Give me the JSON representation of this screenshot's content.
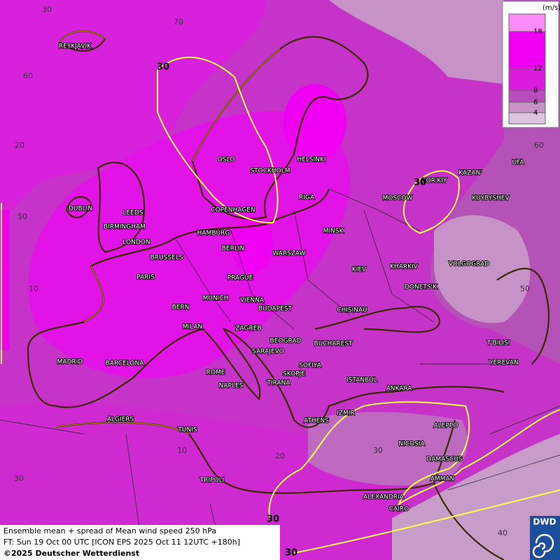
{
  "legend": {
    "unit": "(m/s)",
    "levels": [
      18,
      12,
      8,
      6,
      4
    ]
  },
  "caption": {
    "line1": "Ensemble mean + spread of Mean wind speed 250 hPa",
    "line2": "FT: Sun 19 Oct 00 UTC [ICON EPS 2025 Oct 11 12UTC +180h]",
    "line3": "©2025 Deutscher Wetterdienst"
  },
  "logo": "DWD",
  "contour_labels": [
    "30",
    "30",
    "30",
    "30"
  ],
  "grid_labels": [
    "30",
    "70",
    "60",
    "20",
    "50",
    "10",
    "30",
    "10",
    "20",
    "30",
    "40",
    "60",
    "50"
  ],
  "cities": [
    "REYKJAVIK",
    "OSLO",
    "STOCKHOLM",
    "HELSINKI",
    "KAZAN'",
    "UFA",
    "GOR'KIY",
    "MOSCOW",
    "KUYBYSHEV",
    "DUBLIN",
    "LEEDS",
    "COPENHAGEN",
    "RIGA",
    "BIRMINGHAM",
    "HAMBURG",
    "MINSK",
    "LONDON",
    "BERLIN",
    "WARSZAW",
    "BRUSSELS",
    "VOLGOGRAD",
    "KIEV",
    "KHARKIV",
    "PARIS",
    "PRAGUE",
    "DONETS'K",
    "MUNICH",
    "VIENNA",
    "BERN",
    "BUDAPEST",
    "CHISINAU",
    "MILAN",
    "ZAGREB",
    "BEOGRAD",
    "BUCHAREST",
    "T'BILISI",
    "SARAJEVO",
    "MADRID",
    "BARCELONA",
    "SOFIYA",
    "YEREVAN",
    "ROME",
    "SKOPJE",
    "TIRANA",
    "NAPLES",
    "ISTANBUL",
    "ANKARA",
    "IZMIR",
    "ALGIERS",
    "ATHENS",
    "ALEPPO",
    "TUNIS",
    "NICOSIA",
    "DAMASCUS",
    "AMMAN",
    "TRIPOLI",
    "ALEXANDRIA",
    "CAIRO"
  ]
}
